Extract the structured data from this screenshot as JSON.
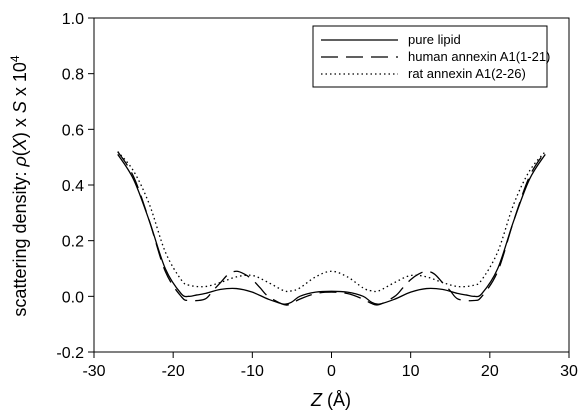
{
  "chart_data": {
    "type": "line",
    "xlabel": {
      "var": "Z",
      "rest": " (Å)"
    },
    "ylabel": {
      "prefix": "scattering density: ",
      "rho": "ρ",
      "open": "(",
      "var": "X",
      "mid": ") x ",
      "s": "S",
      "times": " x 10",
      "exp": "4"
    },
    "xlim": [
      -30,
      30
    ],
    "ylim": [
      -0.2,
      1.0
    ],
    "xticks": [
      "-30",
      "-20",
      "-10",
      "0",
      "10",
      "20",
      "30"
    ],
    "yticks": [
      "-0.2",
      "0.0",
      "0.2",
      "0.4",
      "0.6",
      "0.8",
      "1.0"
    ],
    "legend_position": "top-right",
    "series": [
      {
        "name": "pure lipid",
        "style": "solid",
        "color": "#000000",
        "x": [
          -27.0,
          -25.0,
          -23.0,
          -21.0,
          -19.0,
          -18.0,
          -17.0,
          -16.0,
          -14.0,
          -12.0,
          -10.0,
          -8.0,
          -6.0,
          -5.0,
          -4.0,
          -2.0,
          0.0,
          2.0,
          4.0,
          5.0,
          6.0,
          8.0,
          10.0,
          12.0,
          14.0,
          16.0,
          17.0,
          18.0,
          19.0,
          21.0,
          23.0,
          25.0,
          27.0
        ],
        "y": [
          0.51,
          0.42,
          0.27,
          0.1,
          0.01,
          0.0,
          0.005,
          0.01,
          0.025,
          0.028,
          0.015,
          -0.01,
          -0.028,
          -0.02,
          0.0,
          0.015,
          0.018,
          0.015,
          0.0,
          -0.02,
          -0.028,
          -0.01,
          0.015,
          0.028,
          0.025,
          0.01,
          0.005,
          0.0,
          0.01,
          0.1,
          0.27,
          0.42,
          0.51
        ]
      },
      {
        "name": "human annexin A1(1-21)",
        "style": "dashed",
        "color": "#000000",
        "x": [
          -27.0,
          -25.0,
          -23.0,
          -21.0,
          -19.0,
          -18.0,
          -16.0,
          -15.0,
          -14.0,
          -13.0,
          -12.0,
          -11.0,
          -10.0,
          -9.0,
          -8.0,
          -6.0,
          -5.0,
          -4.0,
          -2.0,
          0.0,
          2.0,
          4.0,
          5.0,
          6.0,
          8.0,
          9.0,
          10.0,
          11.0,
          12.0,
          13.0,
          14.0,
          15.0,
          16.0,
          18.0,
          19.0,
          21.0,
          23.0,
          25.0,
          27.0
        ],
        "y": [
          0.52,
          0.43,
          0.27,
          0.09,
          0.0,
          -0.015,
          -0.01,
          0.02,
          0.05,
          0.08,
          0.09,
          0.08,
          0.06,
          0.03,
          0.0,
          -0.03,
          -0.025,
          -0.01,
          0.01,
          0.015,
          0.01,
          -0.01,
          -0.025,
          -0.03,
          0.0,
          0.03,
          0.06,
          0.08,
          0.09,
          0.08,
          0.05,
          0.02,
          -0.01,
          -0.015,
          0.0,
          0.09,
          0.27,
          0.43,
          0.52
        ]
      },
      {
        "name": "rat annexin A1(2-26)",
        "style": "dotted",
        "color": "#000000",
        "x": [
          -27.0,
          -25.0,
          -23.0,
          -21.0,
          -19.0,
          -18.0,
          -16.0,
          -14.0,
          -12.0,
          -10.0,
          -8.0,
          -6.0,
          -5.0,
          -4.0,
          -2.0,
          0.0,
          2.0,
          4.0,
          5.0,
          6.0,
          8.0,
          10.0,
          12.0,
          14.0,
          16.0,
          18.0,
          19.0,
          21.0,
          23.0,
          25.0,
          27.0
        ],
        "y": [
          0.52,
          0.45,
          0.33,
          0.16,
          0.06,
          0.04,
          0.035,
          0.05,
          0.07,
          0.075,
          0.05,
          0.02,
          0.02,
          0.03,
          0.07,
          0.09,
          0.07,
          0.03,
          0.02,
          0.02,
          0.05,
          0.075,
          0.07,
          0.05,
          0.035,
          0.04,
          0.06,
          0.16,
          0.33,
          0.45,
          0.52
        ]
      }
    ]
  }
}
